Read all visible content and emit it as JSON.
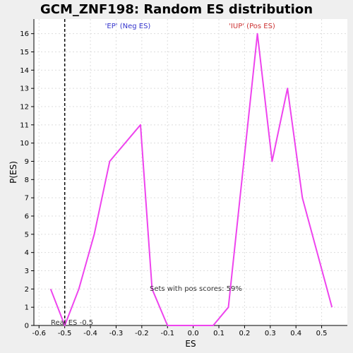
{
  "chart_data": {
    "type": "line",
    "title": "GCM_ZNF198: Random ES distribution",
    "xlabel": "ES",
    "ylabel": "P(ES)",
    "xlim": [
      -0.62,
      0.6
    ],
    "ylim": [
      0,
      16.8
    ],
    "x_ticks": [
      -0.6,
      -0.5,
      -0.4,
      -0.3,
      -0.2,
      -0.1,
      0.0,
      0.1,
      0.2,
      0.3,
      0.4,
      0.5
    ],
    "x_tick_labels": [
      "-0.6",
      "-0.5",
      "-0.4",
      "-0.3",
      "-0.2",
      "-0.1",
      "0.0",
      "0.1",
      "0.2",
      "0.3",
      "0.4",
      "0.5"
    ],
    "y_ticks": [
      0,
      1,
      2,
      3,
      4,
      5,
      6,
      7,
      8,
      9,
      10,
      11,
      12,
      13,
      14,
      15,
      16
    ],
    "y_tick_labels": [
      "0",
      "1",
      "2",
      "3",
      "4",
      "5",
      "6",
      "7",
      "8",
      "9",
      "10",
      "11",
      "12",
      "13",
      "14",
      "15",
      "16"
    ],
    "grid": true,
    "series": [
      {
        "color": "#ee44ee",
        "x": [
          -0.555,
          -0.5,
          -0.445,
          -0.385,
          -0.325,
          -0.205,
          -0.16,
          -0.1,
          -0.04,
          0.02,
          0.078,
          0.137,
          0.25,
          0.307,
          0.367,
          0.425,
          0.54
        ],
        "y": [
          2,
          0,
          2,
          5,
          9,
          11,
          2,
          0,
          0,
          0,
          0,
          1,
          16,
          9,
          13,
          7,
          1
        ]
      }
    ],
    "real_es": -0.5,
    "annotations": {
      "neg_label": "'EP' (Neg ES)",
      "neg_color": "#3333cc",
      "pos_label": "'IUP' (Pos ES)",
      "pos_color": "#cc3333",
      "real_es_label": "Real ES -0.5",
      "pos_scores_label": "Sets with pos scores: 59%"
    }
  }
}
